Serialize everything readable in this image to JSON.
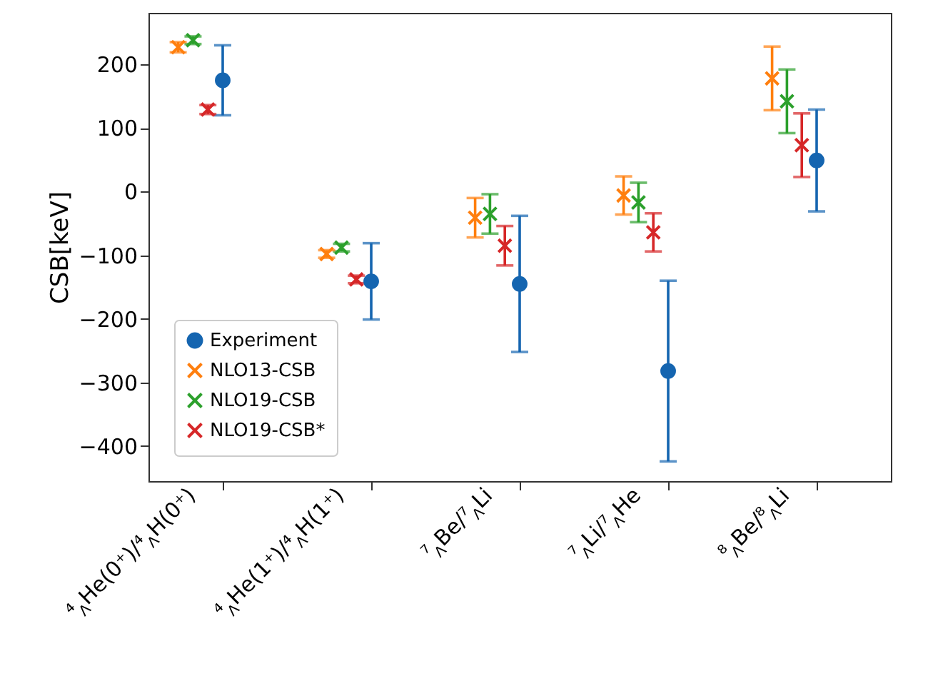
{
  "chart_data": {
    "type": "scatter",
    "ylabel": "CSB[keV]",
    "categories": [
      "⁴$_{Λ}$He(0⁺)/⁴$_{Λ}$H(0⁺)",
      "⁴$_{Λ}$He(1⁺)/⁴$_{Λ}$H(1⁺)",
      "⁷$_{Λ}$Be/⁷$_{Λ}$Li",
      "⁷$_{Λ}$Li/⁷$_{Λ}$He",
      "⁸$_{Λ}$Be/⁸$_{Λ}$Li"
    ],
    "series": [
      {
        "name": "Experiment",
        "color": "#1565b0",
        "marker": "circle",
        "values": [
          175,
          -141,
          -145,
          -282,
          49
        ],
        "errors": [
          55,
          60,
          107,
          142,
          80
        ]
      },
      {
        "name": "NLO13-CSB",
        "color": "#ff7f0e",
        "marker": "cross",
        "values": [
          227,
          -98,
          -41,
          -6,
          178
        ],
        "errors": [
          8,
          6,
          31,
          30,
          50
        ]
      },
      {
        "name": "NLO19-CSB",
        "color": "#2ca02c",
        "marker": "cross",
        "values": [
          238,
          -88,
          -35,
          -17,
          142
        ],
        "errors": [
          6,
          6,
          31,
          31,
          50
        ]
      },
      {
        "name": "NLO19-CSB*",
        "color": "#d62728",
        "marker": "cross",
        "values": [
          129,
          -138,
          -85,
          -64,
          73
        ],
        "errors": [
          7,
          6,
          31,
          30,
          50
        ]
      }
    ],
    "ylim": [
      -455,
      281
    ],
    "yticks": [
      -400,
      -300,
      -200,
      -100,
      0,
      100,
      200
    ],
    "grid": false,
    "legend": "bottom left"
  }
}
